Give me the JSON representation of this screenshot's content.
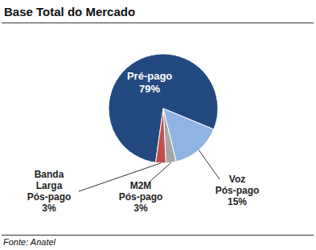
{
  "chart_data": {
    "type": "pie",
    "title": "Base Total do Mercado",
    "source": "Fonte: Anatel",
    "categories": [
      "Pré-pago",
      "Voz Pós-pago",
      "M2M Pós-pago",
      "Banda Larga Pós-pago"
    ],
    "values": [
      79,
      15,
      3,
      3
    ],
    "value_labels": [
      "79%",
      "15%",
      "3%",
      "3%"
    ],
    "colors": [
      "#234a80",
      "#8fb4e3",
      "#a6a6a6",
      "#c0504d"
    ],
    "data_labels": true
  }
}
